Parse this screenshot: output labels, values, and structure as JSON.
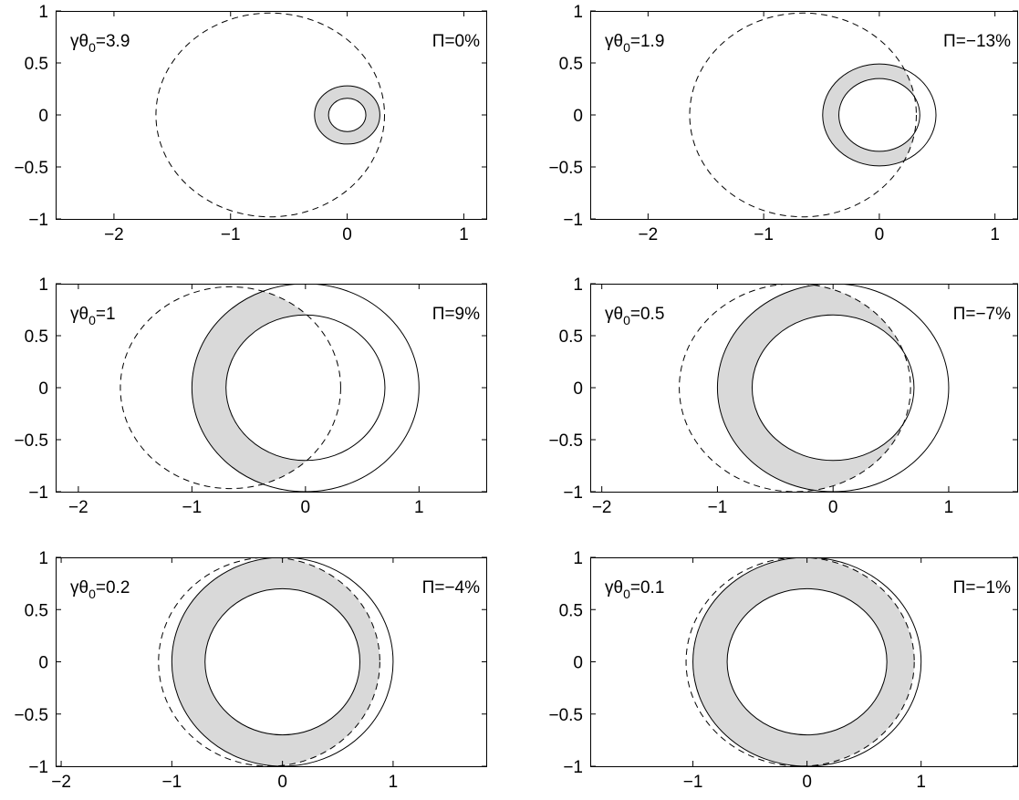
{
  "colors": {
    "ink": "#000000",
    "ring_fill": "#d9d9d9",
    "background": "#ffffff"
  },
  "chart_data": [
    {
      "type": "scatter",
      "annotation_left": {
        "prefix": "γθ",
        "sub": "0",
        "suffix": "=3.9"
      },
      "annotation_right": "Π=0%",
      "xlim": [
        -2.5,
        1.2
      ],
      "ylim": [
        -1,
        1
      ],
      "xticks": [
        -2,
        -1,
        0,
        1
      ],
      "xtick_labels": [
        "−2",
        "−1",
        "0",
        "1"
      ],
      "yticks": [
        1,
        0.5,
        0,
        -0.5,
        -1
      ],
      "ytick_labels": [
        "1",
        "0.5",
        "0",
        "−0.5",
        "−1"
      ],
      "dashed_circle": {
        "cx": -0.66,
        "cy": 0,
        "r": 0.98
      },
      "outer_circle": {
        "cx": 0,
        "cy": 0,
        "r": 0.28
      },
      "inner_circle": {
        "cx": 0,
        "cy": 0,
        "r": 0.16
      },
      "shaded_region": "outer ring inside dashed circle"
    },
    {
      "type": "scatter",
      "annotation_left": {
        "prefix": "γθ",
        "sub": "0",
        "suffix": "=1.9"
      },
      "annotation_right": "Π=−13%",
      "xlim": [
        -2.5,
        1.2
      ],
      "ylim": [
        -1,
        1
      ],
      "xticks": [
        -2,
        -1,
        0,
        1
      ],
      "xtick_labels": [
        "−2",
        "−1",
        "0",
        "1"
      ],
      "yticks": [
        1,
        0.5,
        0,
        -0.5,
        -1
      ],
      "ytick_labels": [
        "1",
        "0.5",
        "0",
        "−0.5",
        "−1"
      ],
      "dashed_circle": {
        "cx": -0.66,
        "cy": 0,
        "r": 0.98
      },
      "outer_circle": {
        "cx": 0,
        "cy": 0,
        "r": 0.49
      },
      "inner_circle": {
        "cx": 0,
        "cy": 0,
        "r": 0.35
      },
      "shaded_region": "outer ring inside dashed circle"
    },
    {
      "type": "scatter",
      "annotation_left": {
        "prefix": "γθ",
        "sub": "0",
        "suffix": "=1"
      },
      "annotation_right": "Π=9%",
      "xlim": [
        -2.2,
        1.6
      ],
      "ylim": [
        -1,
        1
      ],
      "xticks": [
        -2,
        -1,
        0,
        1
      ],
      "xtick_labels": [
        "−2",
        "−1",
        "0",
        "1"
      ],
      "yticks": [
        1,
        0.5,
        0,
        -0.5,
        -1
      ],
      "ytick_labels": [
        "1",
        "0.5",
        "0",
        "−0.5",
        "−1"
      ],
      "dashed_circle": {
        "cx": -0.66,
        "cy": 0,
        "r": 0.97
      },
      "outer_circle": {
        "cx": 0,
        "cy": 0,
        "r": 1.0
      },
      "inner_circle": {
        "cx": 0,
        "cy": 0,
        "r": 0.7
      },
      "shaded_region": "outer ring inside dashed circle"
    },
    {
      "type": "scatter",
      "annotation_left": {
        "prefix": "γθ",
        "sub": "0",
        "suffix": "=0.5"
      },
      "annotation_right": "Π=−7%",
      "xlim": [
        -2.1,
        1.6
      ],
      "ylim": [
        -1,
        1
      ],
      "xticks": [
        -2,
        -1,
        0,
        1
      ],
      "xtick_labels": [
        "−2",
        "−1",
        "0",
        "1"
      ],
      "yticks": [
        1,
        0.5,
        0,
        -0.5,
        -1
      ],
      "ytick_labels": [
        "1",
        "0.5",
        "0",
        "−0.5",
        "−1"
      ],
      "dashed_circle": {
        "cx": -0.33,
        "cy": 0,
        "r": 1.0
      },
      "outer_circle": {
        "cx": 0,
        "cy": 0,
        "r": 1.0
      },
      "inner_circle": {
        "cx": 0,
        "cy": 0,
        "r": 0.7
      },
      "shaded_region": "outer ring inside dashed circle"
    },
    {
      "type": "scatter",
      "annotation_left": {
        "prefix": "γθ",
        "sub": "0",
        "suffix": "=0.2"
      },
      "annotation_right": "Π=−4%",
      "xlim": [
        -2.05,
        1.85
      ],
      "ylim": [
        -1,
        1
      ],
      "xticks": [
        -2,
        -1,
        0,
        1
      ],
      "xtick_labels": [
        "−2",
        "−1",
        "0",
        "1"
      ],
      "yticks": [
        1,
        0.5,
        0,
        -0.5,
        -1
      ],
      "ytick_labels": [
        "1",
        "0.5",
        "0",
        "−0.5",
        "−1"
      ],
      "dashed_circle": {
        "cx": -0.12,
        "cy": 0,
        "r": 1.0
      },
      "outer_circle": {
        "cx": 0,
        "cy": 0,
        "r": 1.0
      },
      "inner_circle": {
        "cx": 0,
        "cy": 0,
        "r": 0.7
      },
      "shaded_region": "outer ring inside dashed circle"
    },
    {
      "type": "scatter",
      "annotation_left": {
        "prefix": "γθ",
        "sub": "0",
        "suffix": "=0.1"
      },
      "annotation_right": "Π=−1%",
      "xlim": [
        -1.9,
        1.85
      ],
      "ylim": [
        -1,
        1
      ],
      "xticks": [
        -1,
        0,
        1
      ],
      "xtick_labels": [
        "−1",
        "0",
        "1"
      ],
      "yticks": [
        1,
        0.5,
        0,
        -0.5,
        -1
      ],
      "ytick_labels": [
        "1",
        "0.5",
        "0",
        "−0.5",
        "−1"
      ],
      "dashed_circle": {
        "cx": -0.06,
        "cy": 0,
        "r": 1.0
      },
      "outer_circle": {
        "cx": 0,
        "cy": 0,
        "r": 1.0
      },
      "inner_circle": {
        "cx": 0,
        "cy": 0,
        "r": 0.7
      },
      "shaded_region": "outer ring inside dashed circle"
    }
  ]
}
